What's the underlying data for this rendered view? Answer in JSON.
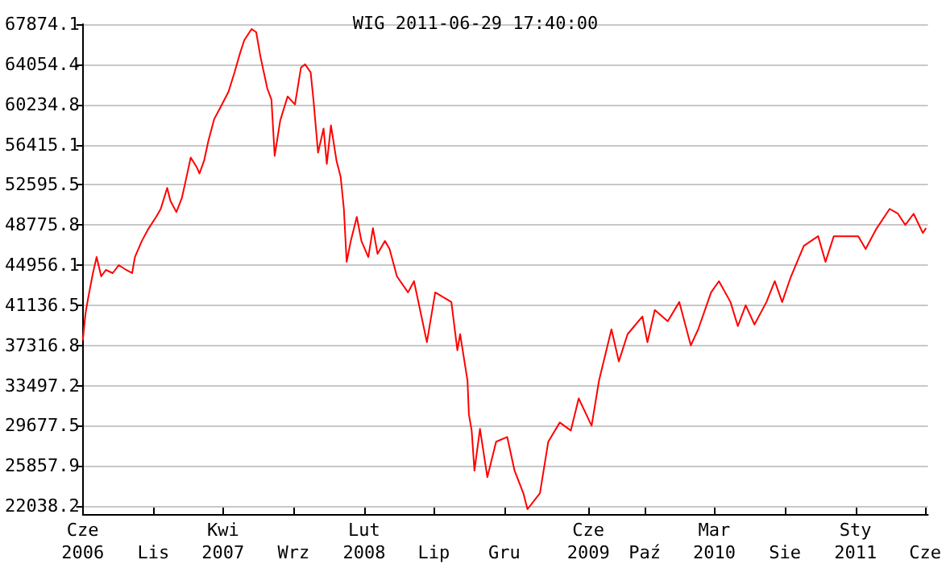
{
  "chart_data": {
    "type": "line",
    "title": "WIG 2011-06-29 17:40:00",
    "x": [
      "2006-06-01",
      "2006-06-07",
      "2006-06-13",
      "2006-06-23",
      "2006-07-01",
      "2006-07-11",
      "2006-07-21",
      "2006-08-05",
      "2006-08-18",
      "2006-09-03",
      "2006-09-16",
      "2006-09-22",
      "2006-10-07",
      "2006-10-20",
      "2006-11-07",
      "2006-11-17",
      "2006-12-01",
      "2006-12-08",
      "2006-12-21",
      "2007-01-02",
      "2007-01-12",
      "2007-01-21",
      "2007-02-03",
      "2007-02-09",
      "2007-02-19",
      "2007-02-28",
      "2007-03-13",
      "2007-03-26",
      "2007-04-13",
      "2007-04-26",
      "2007-05-08",
      "2007-05-17",
      "2007-06-02",
      "2007-06-12",
      "2007-06-21",
      "2007-07-06",
      "2007-07-15",
      "2007-07-22",
      "2007-08-03",
      "2007-08-19",
      "2007-09-04",
      "2007-09-17",
      "2007-09-26",
      "2007-10-08",
      "2007-10-14",
      "2007-10-24",
      "2007-11-05",
      "2007-11-12",
      "2007-11-21",
      "2007-12-03",
      "2007-12-12",
      "2007-12-19",
      "2007-12-25",
      "2008-01-03",
      "2008-01-16",
      "2008-01-26",
      "2008-02-10",
      "2008-02-20",
      "2008-03-01",
      "2008-03-17",
      "2008-03-27",
      "2008-04-12",
      "2008-05-06",
      "2008-05-19",
      "2008-06-16",
      "2008-07-04",
      "2008-08-08",
      "2008-08-21",
      "2008-08-27",
      "2008-09-12",
      "2008-09-15",
      "2008-09-21",
      "2008-09-27",
      "2008-10-09",
      "2008-10-25",
      "2008-11-13",
      "2008-12-07",
      "2008-12-23",
      "2009-01-11",
      "2009-01-20",
      "2009-02-16",
      "2009-03-06",
      "2009-03-31",
      "2009-04-24",
      "2009-05-11",
      "2009-06-08",
      "2009-06-24",
      "2009-07-21",
      "2009-08-06",
      "2009-08-25",
      "2009-09-26",
      "2009-10-07",
      "2009-10-23",
      "2009-11-20",
      "2009-12-15",
      "2010-01-09",
      "2010-01-25",
      "2010-02-22",
      "2010-03-11",
      "2010-04-05",
      "2010-04-21",
      "2010-05-08",
      "2010-05-27",
      "2010-06-22",
      "2010-07-10",
      "2010-07-26",
      "2010-08-13",
      "2010-09-11",
      "2010-10-12",
      "2010-10-28",
      "2010-11-15",
      "2011-01-07",
      "2011-01-23",
      "2011-02-14",
      "2011-03-16",
      "2011-04-03",
      "2011-04-19",
      "2011-05-07",
      "2011-05-27",
      "2011-06-03"
    ],
    "series": [
      {
        "color": "#ff0000",
        "values": [
          37775,
          40373,
          41900,
          44192,
          45720,
          43887,
          44498,
          44192,
          44956,
          44498,
          44192,
          45720,
          47248,
          48317,
          49540,
          50304,
          52290,
          51068,
          49998,
          51373,
          53359,
          55193,
          54276,
          53665,
          54887,
          56721,
          58860,
          59929,
          61457,
          63290,
          65124,
          66346,
          67416,
          67110,
          64818,
          61763,
          60693,
          55346,
          58707,
          60999,
          60235,
          63749,
          64054,
          63290,
          60693,
          55651,
          57943,
          54582,
          58248,
          54887,
          53359,
          50304,
          45262,
          47248,
          49540,
          47248,
          45720,
          48470,
          46025,
          47248,
          46484,
          43887,
          42359,
          43428,
          37622,
          42359,
          41442,
          36858,
          38386,
          33956,
          30747,
          29219,
          25400,
          29372,
          24788,
          28150,
          28608,
          25400,
          23260,
          21733,
          23260,
          28150,
          29983,
          29219,
          32275,
          29677,
          33956,
          38845,
          35789,
          38386,
          40067,
          37622,
          40678,
          39609,
          41442,
          37317,
          38845,
          42359,
          43428,
          41442,
          39150,
          41136,
          39303,
          41442,
          43428,
          41442,
          43734,
          46790,
          47706,
          45262,
          47706,
          47706,
          46484,
          48317,
          50304,
          49845,
          48776,
          49845,
          48012,
          48470
        ]
      }
    ],
    "xlim": [
      "2006-06-01",
      "2011-06-07"
    ],
    "xticks": [
      {
        "value": "2006-06-01",
        "label": "Cze\n2006"
      },
      {
        "value": "2006-11-01",
        "label": "Lis"
      },
      {
        "value": "2007-04-01",
        "label": "Kwi\n2007"
      },
      {
        "value": "2007-09-01",
        "label": "Wrz"
      },
      {
        "value": "2008-02-01",
        "label": "Lut\n2008"
      },
      {
        "value": "2008-07-01",
        "label": "Lip"
      },
      {
        "value": "2008-12-01",
        "label": "Gru"
      },
      {
        "value": "2009-06-01",
        "label": "Cze\n2009"
      },
      {
        "value": "2009-10-01",
        "label": "Paź"
      },
      {
        "value": "2010-03-01",
        "label": "Mar\n2010"
      },
      {
        "value": "2010-08-01",
        "label": "Sie"
      },
      {
        "value": "2011-01-01",
        "label": "Sty\n2011"
      },
      {
        "value": "2011-06-01",
        "label": "Cze"
      }
    ],
    "ylim": [
      21274,
      67874.1
    ],
    "yticks": [
      {
        "value": 22038.2,
        "label": "22038.2"
      },
      {
        "value": 25857.9,
        "label": "25857.9"
      },
      {
        "value": 29677.5,
        "label": "29677.5"
      },
      {
        "value": 33497.2,
        "label": "33497.2"
      },
      {
        "value": 37316.8,
        "label": "37316.8"
      },
      {
        "value": 41136.5,
        "label": "41136.5"
      },
      {
        "value": 44956.1,
        "label": "44956.1"
      },
      {
        "value": 48775.8,
        "label": "48775.8"
      },
      {
        "value": 52595.5,
        "label": "52595.5"
      },
      {
        "value": 56415.1,
        "label": "56415.1"
      },
      {
        "value": 60234.8,
        "label": "60234.8"
      },
      {
        "value": 64054.4,
        "label": "64054.4"
      },
      {
        "value": 67874.1,
        "label": "67874.1"
      }
    ],
    "grid": "y",
    "marker": "none",
    "line_style": "solid"
  }
}
